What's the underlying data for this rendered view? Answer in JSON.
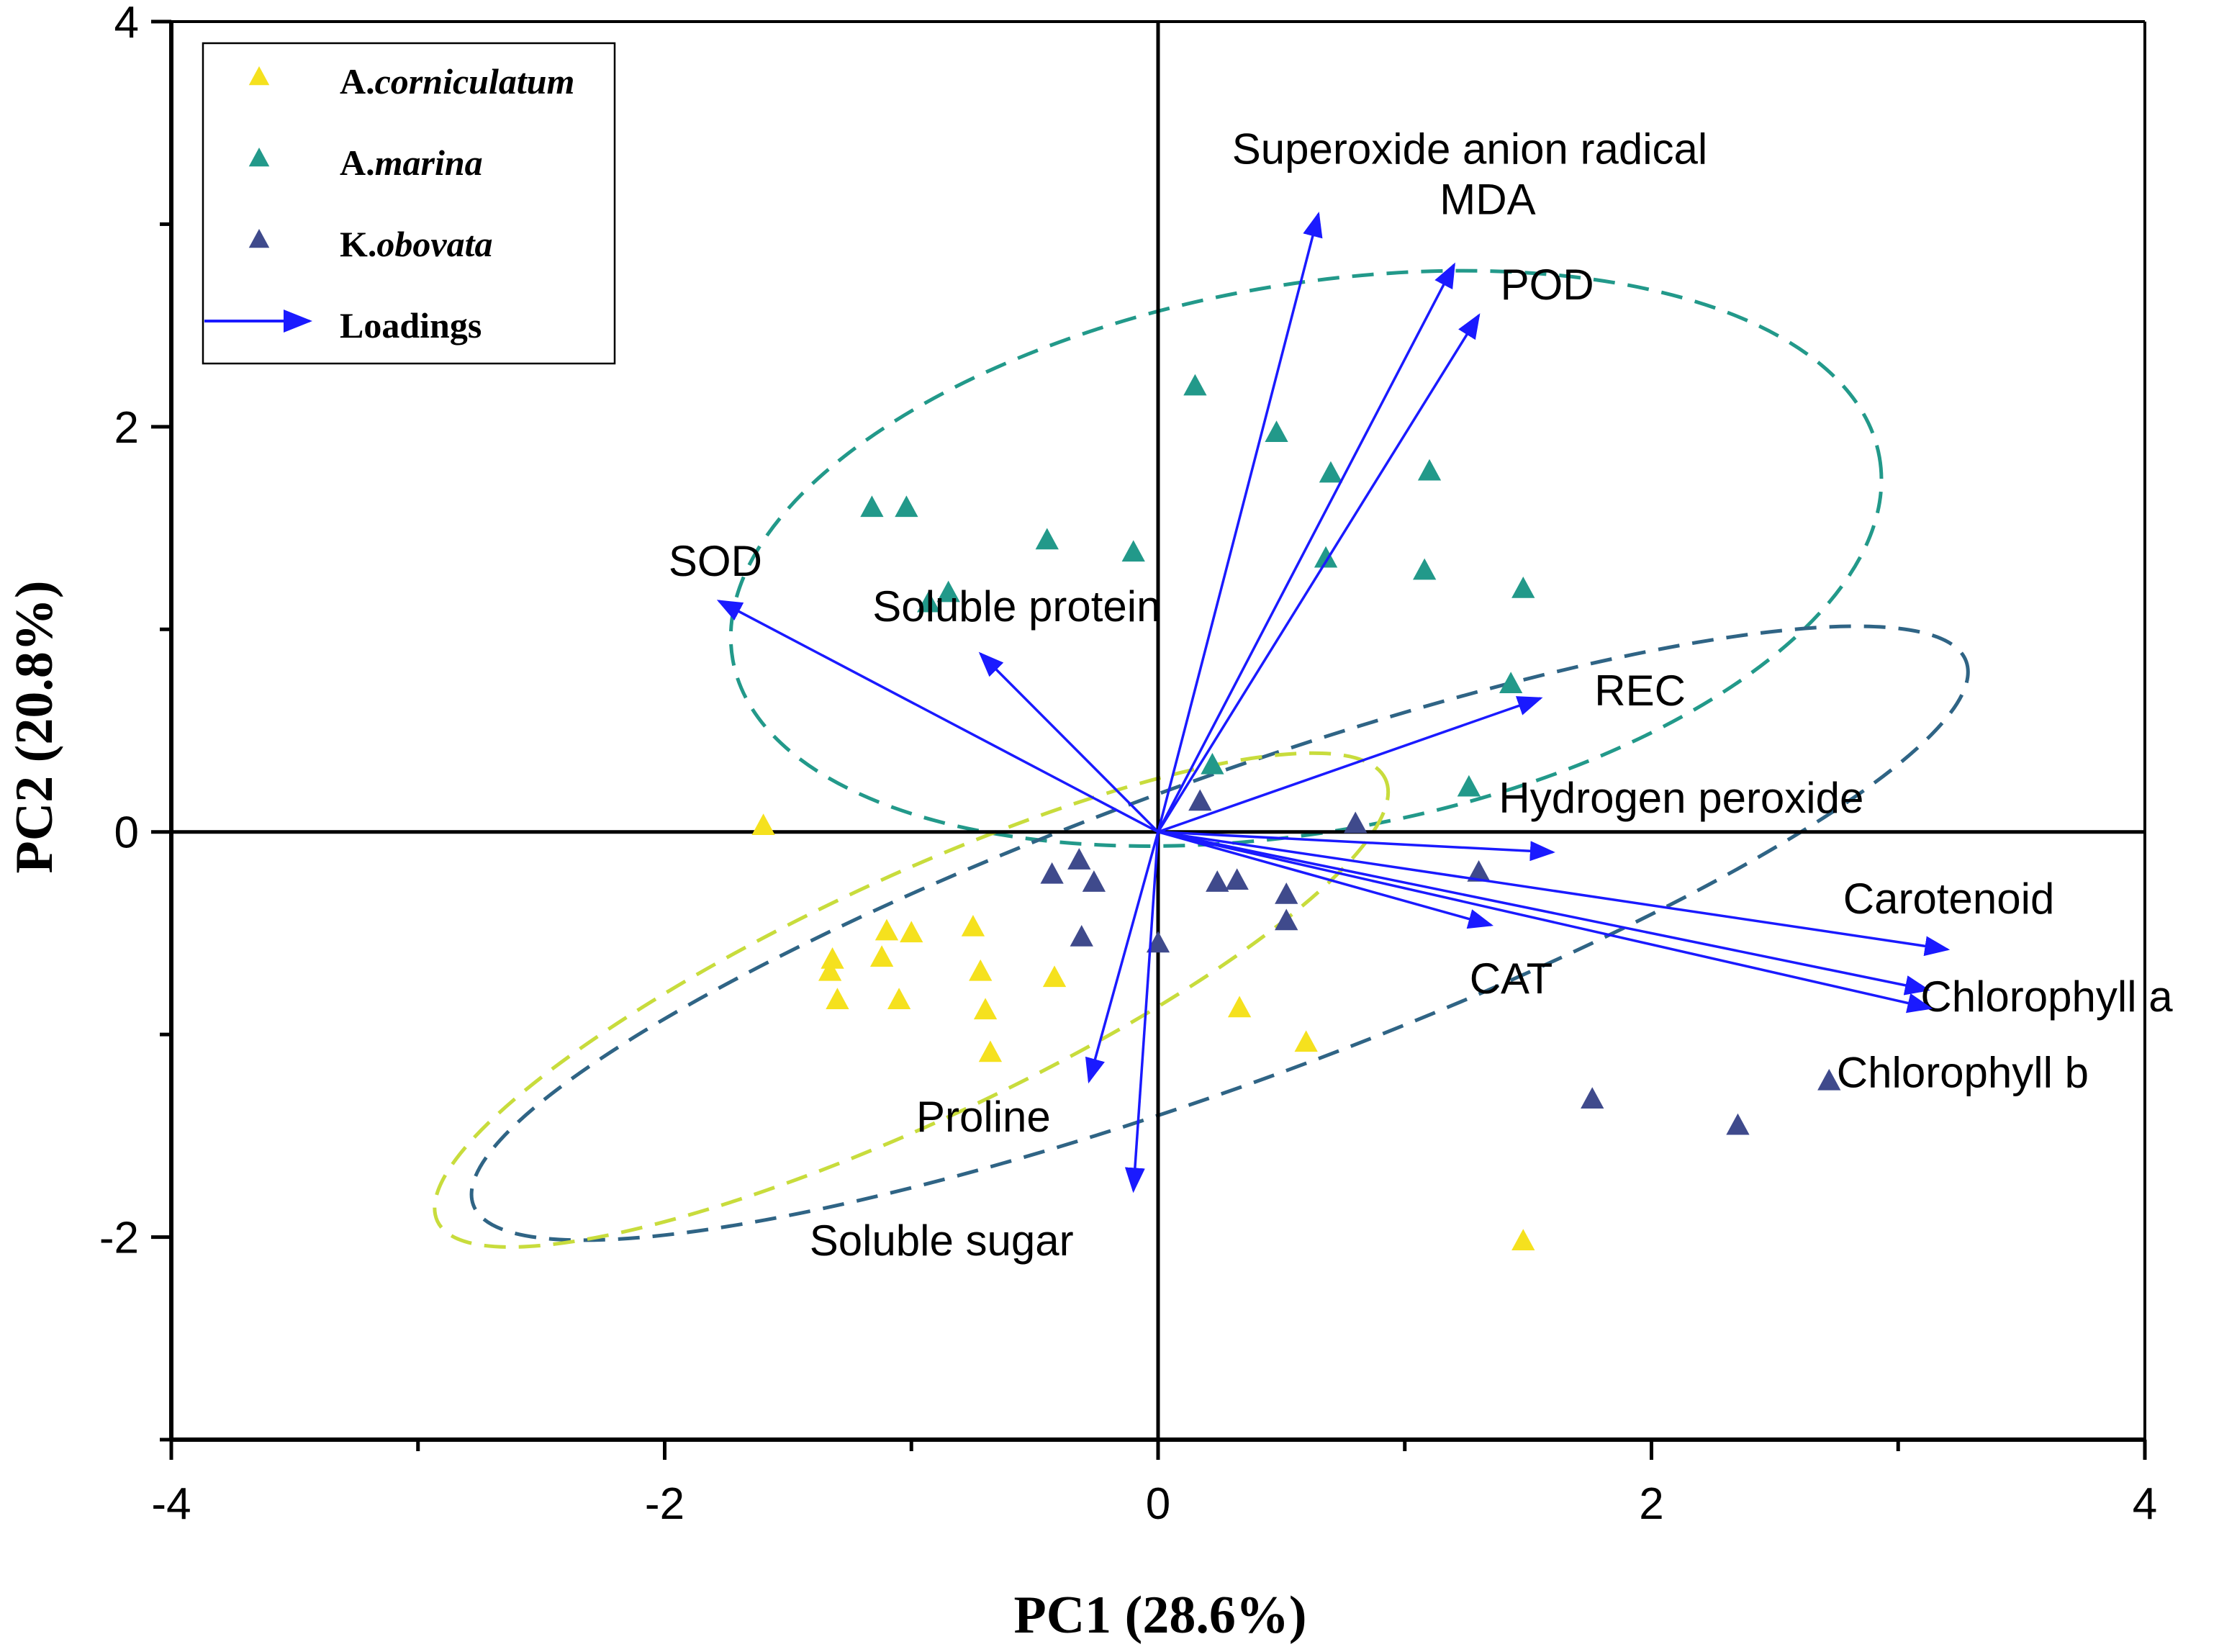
{
  "chart_data": {
    "type": "scatter",
    "subtype": "pca-biplot",
    "title": "",
    "xlabel": "PC1 (28.6%)",
    "ylabel": "PC2 (20.8%)",
    "xlim": [
      -4,
      4
    ],
    "ylim": [
      -3,
      4
    ],
    "x_ticks": [
      -4,
      -2,
      0,
      2,
      4
    ],
    "y_ticks": [
      -2,
      0,
      2,
      4
    ],
    "x_tick_labels": [
      "-4",
      "-2",
      "0",
      "2",
      "4"
    ],
    "y_tick_labels": [
      "-2",
      "0",
      "2",
      "4"
    ],
    "legend_position": "top-left",
    "legend": {
      "species": [
        {
          "prefix": "A.",
          "name": "corniculatum",
          "color": "#f5e11e"
        },
        {
          "prefix": "A.",
          "name": "marina",
          "color": "#22998a"
        },
        {
          "prefix": "K.",
          "name": "obovata",
          "color": "#3f4a8c"
        }
      ],
      "loadings_label": "Loadings",
      "loadings_color": "#1a1aff"
    },
    "series": [
      {
        "name": "A.corniculatum",
        "color": "#f5e11e",
        "points": [
          [
            -1.6,
            0.03
          ],
          [
            -1.1,
            -0.49
          ],
          [
            -1.0,
            -0.5
          ],
          [
            -0.75,
            -0.47
          ],
          [
            -1.32,
            -0.63
          ],
          [
            -1.33,
            -0.69
          ],
          [
            -1.12,
            -0.62
          ],
          [
            -0.72,
            -0.69
          ],
          [
            -1.3,
            -0.83
          ],
          [
            -1.05,
            -0.83
          ],
          [
            -0.7,
            -0.88
          ],
          [
            -0.42,
            -0.72
          ],
          [
            0.33,
            -0.87
          ],
          [
            0.6,
            -1.04
          ],
          [
            -0.68,
            -1.09
          ],
          [
            1.48,
            -2.02
          ]
        ]
      },
      {
        "name": "A.marina",
        "color": "#22998a",
        "points": [
          [
            0.15,
            2.2
          ],
          [
            0.48,
            1.97
          ],
          [
            0.7,
            1.77
          ],
          [
            1.1,
            1.78
          ],
          [
            -1.16,
            1.6
          ],
          [
            -1.02,
            1.6
          ],
          [
            -0.45,
            1.44
          ],
          [
            -0.1,
            1.38
          ],
          [
            0.68,
            1.35
          ],
          [
            1.08,
            1.29
          ],
          [
            1.48,
            1.2
          ],
          [
            -0.85,
            1.18
          ],
          [
            -0.93,
            1.13
          ],
          [
            1.43,
            0.73
          ],
          [
            0.22,
            0.33
          ],
          [
            1.26,
            0.22
          ]
        ]
      },
      {
        "name": "K.obovata",
        "color": "#3f4a8c",
        "points": [
          [
            0.17,
            0.15
          ],
          [
            0.8,
            0.04
          ],
          [
            -0.32,
            -0.14
          ],
          [
            -0.43,
            -0.21
          ],
          [
            -0.26,
            -0.25
          ],
          [
            0.24,
            -0.25
          ],
          [
            0.32,
            -0.24
          ],
          [
            1.3,
            -0.2
          ],
          [
            0.52,
            -0.31
          ],
          [
            0.52,
            -0.44
          ],
          [
            -0.31,
            -0.52
          ],
          [
            0.0,
            -0.55
          ],
          [
            1.76,
            -1.32
          ],
          [
            2.35,
            -1.45
          ],
          [
            2.72,
            -1.23
          ]
        ]
      }
    ],
    "loadings": [
      {
        "name": "Superoxide anion radical",
        "x": 0.65,
        "y": 3.05
      },
      {
        "name": "MDA",
        "x": 1.2,
        "y": 2.8
      },
      {
        "name": "POD",
        "x": 1.3,
        "y": 2.55
      },
      {
        "name": "SOD",
        "x": -1.78,
        "y": 1.14
      },
      {
        "name": "Soluble protein",
        "x": -0.72,
        "y": 0.88
      },
      {
        "name": "REC",
        "x": 1.55,
        "y": 0.66
      },
      {
        "name": "Hydrogen peroxide",
        "x": 1.6,
        "y": -0.1
      },
      {
        "name": "CAT",
        "x": 1.35,
        "y": -0.46
      },
      {
        "name": "Carotenoid",
        "x": 3.2,
        "y": -0.58
      },
      {
        "name": "Chlorophyll a",
        "x": 3.12,
        "y": -0.78
      },
      {
        "name": "Chlorophyll b",
        "x": 3.13,
        "y": -0.87
      },
      {
        "name": "Proline",
        "x": -0.28,
        "y": -1.23
      },
      {
        "name": "Soluble sugar",
        "x": -0.1,
        "y": -1.77
      }
    ],
    "confidence_ellipses": [
      {
        "group": "A.marina",
        "color": "#22998a",
        "cx": 0.6,
        "cy": 1.35,
        "rx": 2.36,
        "ry": 1.35,
        "angle_deg": -10
      },
      {
        "group": "K.obovata",
        "color": "#2f6485",
        "cx": 0.25,
        "cy": -0.5,
        "rx": 3.22,
        "ry": 0.75,
        "angle_deg": -20
      },
      {
        "group": "A.corniculatum",
        "color": "#c8dc3c",
        "cx": -1.0,
        "cy": -0.83,
        "rx": 2.12,
        "ry": 0.6,
        "angle_deg": -25
      }
    ]
  }
}
